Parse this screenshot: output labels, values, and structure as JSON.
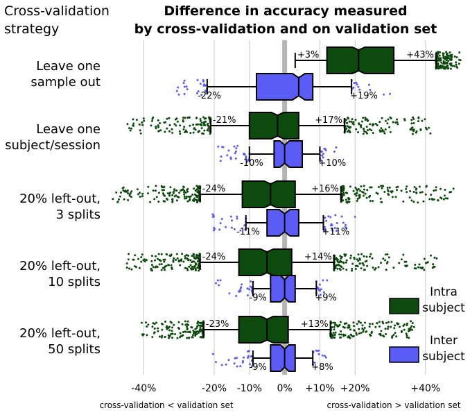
{
  "chart_data": {
    "type": "boxplot",
    "title": "Difference in accuracy measured\nby cross-validation and on validation set",
    "ylabel": "Cross-validation\nstrategy",
    "xlim": [
      -50,
      50
    ],
    "xticks": [
      {
        "v": -40,
        "label": "-40%"
      },
      {
        "v": -20,
        "label": "-20%"
      },
      {
        "v": -10,
        "label": "-10%"
      },
      {
        "v": 0,
        "label": "0%"
      },
      {
        "v": 10,
        "label": "+10%"
      },
      {
        "v": 20,
        "label": "+20%"
      },
      {
        "v": 40,
        "label": "+40%"
      }
    ],
    "xlabel_left": "cross-validation < validation set",
    "xlabel_right": "cross-validation > validation set",
    "grid": true,
    "legend": {
      "position": "right",
      "entries": [
        {
          "label": "Intra\nsubject",
          "color": "#0d4a0d"
        },
        {
          "label": "Inter\nsubject",
          "color": "#5b5bf5"
        }
      ]
    },
    "categories": [
      "Leave one\nsample out",
      "Leave one\nsubject/session",
      "20% left-out,\n3 splits",
      "20% left-out,\n10 splits",
      "20% left-out,\n50 splits"
    ],
    "series": [
      {
        "name": "Intra subject",
        "color": "#0d4a0d",
        "boxes": [
          {
            "whislo": 3,
            "q1": 12,
            "med": 21,
            "q3": 31,
            "whishi": 43,
            "lo_label": "+3%",
            "hi_label": "+43%",
            "jitter_lo": [
              43,
              50
            ],
            "jitter_hi": [
              43,
              50
            ],
            "n_lo": 0,
            "n_hi": 150
          },
          {
            "whislo": -21,
            "q1": -10,
            "med": -2,
            "q3": 4,
            "whishi": 17,
            "lo_label": "-21%",
            "hi_label": "+17%",
            "jitter_lo": [
              -45,
              -21
            ],
            "jitter_hi": [
              17,
              42
            ],
            "n_lo": 120,
            "n_hi": 120
          },
          {
            "whislo": -24,
            "q1": -12,
            "med": -4,
            "q3": 3,
            "whishi": 16,
            "lo_label": "-24%",
            "hi_label": "+16%",
            "jitter_lo": [
              -49,
              -24
            ],
            "jitter_hi": [
              16,
              48
            ],
            "n_lo": 150,
            "n_hi": 150
          },
          {
            "whislo": -24,
            "q1": -13,
            "med": -5,
            "q3": 2,
            "whishi": 14,
            "lo_label": "-24%",
            "hi_label": "+14%",
            "jitter_lo": [
              -45,
              -24
            ],
            "jitter_hi": [
              14,
              44
            ],
            "n_lo": 150,
            "n_hi": 130
          },
          {
            "whislo": -23,
            "q1": -13,
            "med": -5,
            "q3": 1,
            "whishi": 13,
            "lo_label": "-23%",
            "hi_label": "+13%",
            "jitter_lo": [
              -41,
              -23
            ],
            "jitter_hi": [
              13,
              37
            ],
            "n_lo": 150,
            "n_hi": 150
          }
        ]
      },
      {
        "name": "Inter subject",
        "color": "#5b5bf5",
        "boxes": [
          {
            "whislo": -22,
            "q1": -8,
            "med": 4,
            "q3": 8,
            "whishi": 19,
            "lo_label": "-22%",
            "hi_label": "+19%",
            "jitter_lo": [
              -31,
              -22
            ],
            "jitter_hi": [
              19,
              31
            ],
            "n_lo": 25,
            "n_hi": 12
          },
          {
            "whislo": -10,
            "q1": -3,
            "med": 0,
            "q3": 5,
            "whishi": 10,
            "lo_label": "-10%",
            "hi_label": "+10%",
            "jitter_lo": [
              -19,
              -10
            ],
            "jitter_hi": [
              10,
              15
            ],
            "n_lo": 25,
            "n_hi": 15
          },
          {
            "whislo": -11,
            "q1": -5,
            "med": 0,
            "q3": 4,
            "whishi": 11,
            "lo_label": "-11%",
            "hi_label": "+11%",
            "jitter_lo": [
              -21,
              -11
            ],
            "jitter_hi": [
              11,
              20
            ],
            "n_lo": 25,
            "n_hi": 25
          },
          {
            "whislo": -9,
            "q1": -4,
            "med": 0,
            "q3": 3,
            "whishi": 9,
            "lo_label": "-9%",
            "hi_label": "+9%",
            "jitter_lo": [
              -20,
              -9
            ],
            "jitter_hi": [
              9,
              15
            ],
            "n_lo": 25,
            "n_hi": 15
          },
          {
            "whislo": -9,
            "q1": -4,
            "med": 0,
            "q3": 3,
            "whishi": 8,
            "lo_label": "-9%",
            "hi_label": "+8%",
            "jitter_lo": [
              -21,
              -9
            ],
            "jitter_hi": [
              8,
              12
            ],
            "n_lo": 25,
            "n_hi": 12
          }
        ]
      }
    ]
  }
}
